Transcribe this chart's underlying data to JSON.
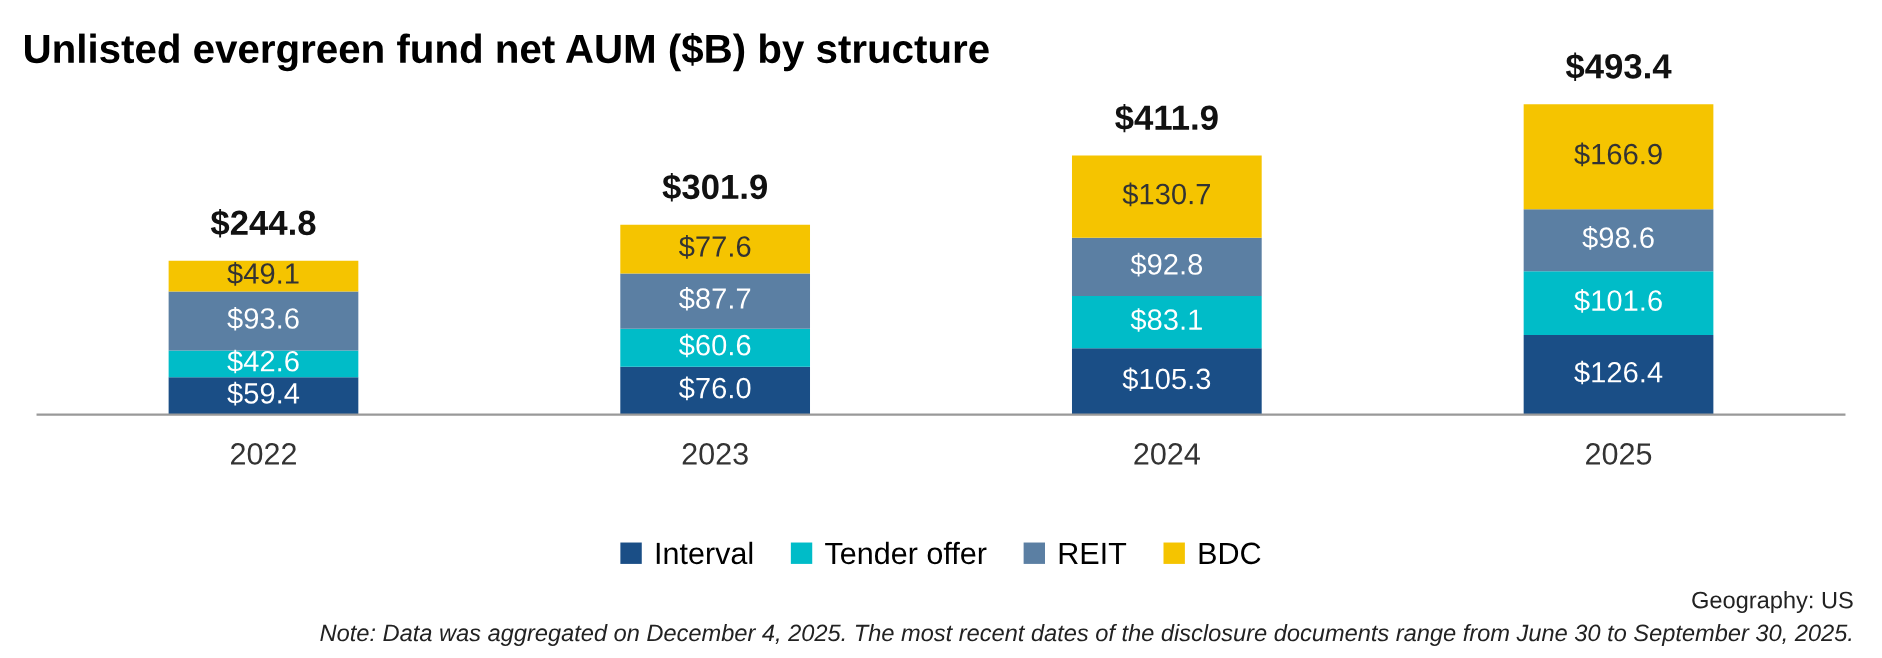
{
  "chart_data": {
    "type": "bar",
    "title": "Unlisted evergreen fund net AUM ($B) by structure",
    "categories": [
      "2022",
      "2023",
      "2024",
      "2025"
    ],
    "stacked": true,
    "series": [
      {
        "name": "Interval",
        "color": "#1a4e86",
        "values": [
          59.4,
          76.0,
          105.3,
          126.4
        ],
        "value_labels": [
          "$59.4",
          "$76.0",
          "$105.3",
          "$126.4"
        ]
      },
      {
        "name": "Tender offer",
        "color": "#00bcc8",
        "values": [
          42.6,
          60.6,
          83.1,
          101.6
        ],
        "value_labels": [
          "$42.6",
          "$60.6",
          "$83.1",
          "$101.6"
        ]
      },
      {
        "name": "REIT",
        "color": "#5b7fa3",
        "values": [
          93.6,
          87.7,
          92.8,
          98.6
        ],
        "value_labels": [
          "$93.6",
          "$87.7",
          "$92.8",
          "$98.6"
        ]
      },
      {
        "name": "BDC",
        "color": "#f5c400",
        "values": [
          49.1,
          77.6,
          130.7,
          166.9
        ],
        "value_labels": [
          "$49.1",
          "$77.6",
          "$130.7",
          "$166.9"
        ]
      }
    ],
    "totals": [
      "$244.8",
      "$301.9",
      "$411.9",
      "$493.4"
    ],
    "legend": "bottom",
    "grid": false,
    "annotations": [
      "Geography: US",
      "Note: Data was aggregated on December 4, 2025. The most recent dates of the disclosure documents range from June 30 to September 30, 2025."
    ]
  }
}
